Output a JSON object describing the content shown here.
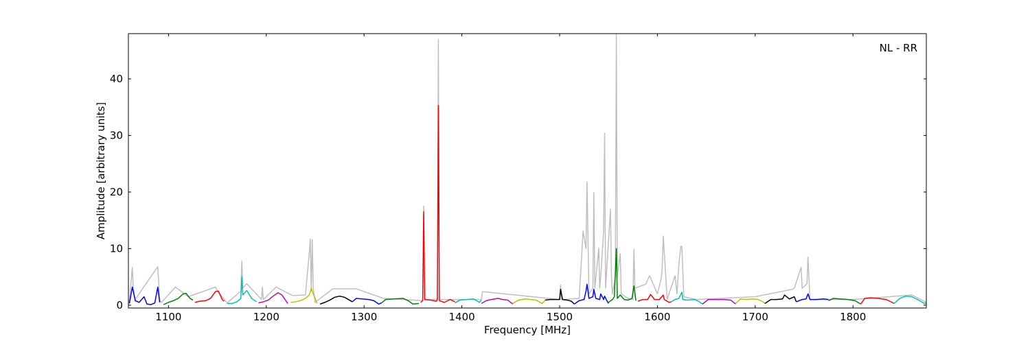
{
  "chart_data": {
    "type": "line",
    "xlabel": "Frequency [MHz]",
    "ylabel": "Amplitude [arbitrary units]",
    "annotation": "NL - RR",
    "xlim": [
      1059,
      1875
    ],
    "ylim": [
      -0.5,
      48
    ],
    "xticks": [
      1100,
      1200,
      1300,
      1400,
      1500,
      1600,
      1700,
      1800
    ],
    "yticks": [
      0,
      10,
      20,
      30,
      40
    ],
    "series": [
      {
        "color": "#bfbfbf",
        "x": [
          1060,
          1063,
          1064,
          1066,
          1075,
          1089,
          1090,
          1091,
          1093,
          1107,
          1115,
          1120,
          1148,
          1150,
          1160,
          1174,
          1175,
          1176,
          1180,
          1195,
          1196,
          1197,
          1210,
          1227,
          1240,
          1244,
          1245,
          1246,
          1247,
          1248,
          1250,
          1268,
          1278,
          1292,
          1320,
          1360,
          1361,
          1362,
          1375,
          1376,
          1377,
          1420,
          1421,
          1500,
          1501,
          1502,
          1520,
          1524,
          1527,
          1528,
          1530,
          1534,
          1535,
          1536,
          1540,
          1541,
          1542,
          1545,
          1546,
          1547,
          1552,
          1553,
          1554,
          1557,
          1558,
          1559,
          1562,
          1563,
          1570,
          1575,
          1576,
          1577,
          1588,
          1592,
          1600,
          1604,
          1605,
          1606,
          1610,
          1618,
          1620,
          1622,
          1624,
          1625,
          1627,
          1640,
          1700,
          1738,
          1740,
          1747,
          1748,
          1753,
          1754,
          1756,
          1800,
          1860,
          1875
        ],
        "values": [
          0.5,
          6.7,
          3.0,
          1.0,
          3.3,
          6.8,
          4.0,
          0.8,
          0.5,
          3.2,
          2.2,
          1.5,
          3.2,
          2.5,
          0.4,
          2.5,
          7.8,
          3.0,
          3.8,
          1.0,
          3.2,
          1.0,
          3.2,
          1.7,
          1.8,
          9.3,
          11.7,
          2.5,
          11.6,
          3.0,
          0.5,
          2.9,
          2.9,
          2.9,
          1.2,
          0.8,
          17.5,
          1.0,
          1.0,
          47.0,
          1.0,
          1.0,
          2.4,
          1.0,
          3.6,
          1.0,
          1.2,
          13.1,
          10.0,
          21.8,
          2.0,
          3.0,
          19.9,
          3.0,
          10.1,
          3.0,
          5.0,
          13.0,
          30.4,
          3.0,
          17.0,
          5.0,
          2.0,
          5.0,
          47.9,
          5.0,
          9.1,
          2.0,
          1.2,
          1.0,
          9.9,
          3.0,
          3.7,
          5.2,
          2.0,
          4.8,
          7.0,
          12.2,
          1.0,
          5.2,
          2.0,
          7.4,
          10.4,
          10.4,
          1.5,
          1.0,
          1.5,
          2.8,
          3.0,
          6.7,
          3.0,
          3.8,
          8.5,
          1.0,
          1.0,
          1.8,
          0.5
        ]
      },
      {
        "color": "#0000ff",
        "x": [
          1060,
          1063,
          1066,
          1070,
          1075,
          1078,
          1082,
          1086,
          1089,
          1091
        ],
        "values": [
          0.3,
          3.2,
          0.8,
          0.5,
          1.5,
          0.2,
          0.1,
          0.4,
          3.2,
          0.5
        ]
      },
      {
        "color": "#008000",
        "x": [
          1095,
          1100,
          1105,
          1110,
          1115,
          1118,
          1122,
          1125
        ],
        "values": [
          0.1,
          0.5,
          0.8,
          1.2,
          2.0,
          2.1,
          1.2,
          0.9
        ]
      },
      {
        "color": "#ff0000",
        "x": [
          1127,
          1132,
          1138,
          1143,
          1148,
          1151,
          1155,
          1157
        ],
        "values": [
          0.5,
          0.7,
          0.8,
          1.2,
          2.4,
          2.5,
          1.0,
          0.7
        ]
      },
      {
        "color": "#00bfbf",
        "x": [
          1160,
          1165,
          1170,
          1174,
          1175,
          1176,
          1180,
          1185,
          1190
        ],
        "values": [
          0.3,
          0.3,
          0.6,
          1.2,
          5.0,
          1.8,
          2.6,
          1.2,
          0.6
        ]
      },
      {
        "color": "#bf00bf",
        "x": [
          1192,
          1197,
          1202,
          1207,
          1212,
          1216,
          1222
        ],
        "values": [
          0.4,
          0.6,
          0.9,
          1.6,
          2.2,
          1.8,
          0.3
        ]
      },
      {
        "color": "#bfbf00",
        "x": [
          1225,
          1230,
          1235,
          1240,
          1244,
          1246,
          1248,
          1252
        ],
        "values": [
          0.5,
          0.6,
          0.8,
          1.2,
          1.8,
          3.0,
          2.0,
          0.3
        ]
      },
      {
        "color": "#000000",
        "x": [
          1255,
          1260,
          1265,
          1270,
          1275,
          1280,
          1285,
          1288
        ],
        "values": [
          0.2,
          0.5,
          0.9,
          1.4,
          1.6,
          1.4,
          0.9,
          0.6
        ]
      },
      {
        "color": "#0000ff",
        "x": [
          1288,
          1292,
          1298,
          1305,
          1310,
          1315,
          1318
        ],
        "values": [
          0.6,
          1.2,
          1.1,
          1.0,
          0.8,
          0.2,
          0.4
        ]
      },
      {
        "color": "#008000",
        "x": [
          1318,
          1322,
          1330,
          1340,
          1345,
          1350,
          1356
        ],
        "values": [
          0.4,
          1.0,
          1.1,
          1.2,
          0.8,
          0.2,
          0.3
        ]
      },
      {
        "color": "#ff0000",
        "x": [
          1358,
          1360,
          1361,
          1362,
          1368,
          1374,
          1375,
          1376,
          1377,
          1382,
          1388,
          1393
        ],
        "values": [
          0.5,
          0.8,
          16.5,
          1.0,
          0.9,
          0.7,
          1.0,
          35.3,
          0.8,
          0.5,
          1.0,
          0.6
        ]
      },
      {
        "color": "#00bfbf",
        "x": [
          1393,
          1398,
          1405,
          1412,
          1418,
          1420
        ],
        "values": [
          0.4,
          0.9,
          1.0,
          1.1,
          0.5,
          0.9
        ]
      },
      {
        "color": "#bf00bf",
        "x": [
          1420,
          1425,
          1430,
          1437,
          1442,
          1447,
          1452
        ],
        "values": [
          0.3,
          0.8,
          1.0,
          1.2,
          1.0,
          0.9,
          0.2
        ]
      },
      {
        "color": "#bfbf00",
        "x": [
          1452,
          1458,
          1465,
          1470,
          1476,
          1482,
          1485
        ],
        "values": [
          0.3,
          0.9,
          1.1,
          1.0,
          0.9,
          0.3,
          0.8
        ]
      },
      {
        "color": "#000000",
        "x": [
          1485,
          1490,
          1495,
          1500,
          1501,
          1503,
          1508,
          1512,
          1515
        ],
        "values": [
          0.9,
          1.0,
          1.0,
          1.0,
          2.8,
          1.0,
          0.9,
          0.7,
          0.2
        ]
      },
      {
        "color": "#0000ff",
        "x": [
          1515,
          1520,
          1525,
          1527,
          1528,
          1530,
          1534,
          1535,
          1537,
          1541,
          1542,
          1545,
          1546,
          1548,
          1550
        ],
        "values": [
          0.2,
          0.8,
          1.0,
          2.5,
          3.7,
          1.2,
          1.5,
          2.8,
          1.2,
          1.0,
          2.0,
          1.0,
          1.6,
          0.9,
          0.3
        ]
      },
      {
        "color": "#008000",
        "x": [
          1550,
          1554,
          1556,
          1558,
          1559,
          1562,
          1566,
          1570,
          1574,
          1576,
          1578
        ],
        "values": [
          0.5,
          1.0,
          1.5,
          10.0,
          1.2,
          1.8,
          1.0,
          0.9,
          1.2,
          3.4,
          0.8
        ]
      },
      {
        "color": "#ff0000",
        "x": [
          1580,
          1585,
          1590,
          1593,
          1597,
          1602,
          1606,
          1607,
          1612,
          1614
        ],
        "values": [
          0.7,
          1.0,
          1.0,
          1.9,
          1.0,
          1.0,
          1.8,
          1.0,
          0.5,
          0.6
        ]
      },
      {
        "color": "#00bfbf",
        "x": [
          1614,
          1618,
          1622,
          1625,
          1626,
          1630,
          1638,
          1642,
          1646
        ],
        "values": [
          0.6,
          1.0,
          1.2,
          2.3,
          1.0,
          0.9,
          1.0,
          0.7,
          0.2
        ]
      },
      {
        "color": "#bf00bf",
        "x": [
          1646,
          1652,
          1660,
          1668,
          1675,
          1680
        ],
        "values": [
          0.2,
          1.0,
          1.0,
          1.0,
          0.9,
          0.2
        ]
      },
      {
        "color": "#bfbf00",
        "x": [
          1680,
          1685,
          1690,
          1697,
          1703,
          1708,
          1710
        ],
        "values": [
          0.3,
          1.1,
          1.0,
          1.1,
          1.0,
          0.6,
          0.3
        ]
      },
      {
        "color": "#000000",
        "x": [
          1710,
          1716,
          1722,
          1728,
          1730,
          1735,
          1740,
          1742
        ],
        "values": [
          0.3,
          1.0,
          1.0,
          1.1,
          1.8,
          1.1,
          1.5,
          0.6
        ]
      },
      {
        "color": "#0000ff",
        "x": [
          1742,
          1748,
          1752,
          1754,
          1756,
          1762,
          1770,
          1775
        ],
        "values": [
          0.6,
          1.0,
          1.1,
          2.0,
          1.0,
          1.0,
          1.1,
          1.0
        ]
      },
      {
        "color": "#008000",
        "x": [
          1775,
          1780,
          1787,
          1795,
          1802,
          1808
        ],
        "values": [
          0.8,
          1.2,
          1.1,
          1.0,
          0.8,
          0.2
        ]
      },
      {
        "color": "#ff0000",
        "x": [
          1808,
          1812,
          1818,
          1826,
          1834,
          1840,
          1842
        ],
        "values": [
          0.2,
          1.2,
          1.3,
          1.2,
          1.0,
          0.5,
          0.3
        ]
      },
      {
        "color": "#00bfbf",
        "x": [
          1842,
          1848,
          1854,
          1860,
          1866,
          1872,
          1875
        ],
        "values": [
          0.3,
          1.2,
          1.6,
          1.5,
          1.0,
          0.4,
          0.3
        ]
      }
    ]
  }
}
